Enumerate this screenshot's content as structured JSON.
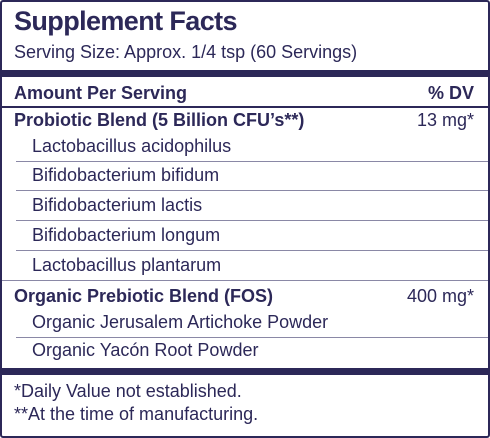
{
  "header": {
    "title": "Supplement Facts",
    "serving_size": "Serving Size: Approx. 1/4 tsp (60 Servings)"
  },
  "table": {
    "columns": [
      "Amount Per Serving",
      "% DV"
    ],
    "sections": [
      {
        "name": "Probiotic Blend (5 Billion CFU’s**)",
        "amount": "13 mg*",
        "ingredients": [
          "Lactobacillus acidophilus",
          "Bifidobacterium bifidum",
          "Bifidobacterium lactis",
          "Bifidobacterium longum",
          "Lactobacillus plantarum"
        ]
      },
      {
        "name": "Organic Prebiotic Blend (FOS)",
        "amount": "400 mg*",
        "ingredients": [
          "Organic Jerusalem Artichoke Powder",
          "Organic Yacón Root Powder"
        ]
      }
    ]
  },
  "footnotes": [
    "*Daily Value not established.",
    "**At the time of manufacturing."
  ]
}
